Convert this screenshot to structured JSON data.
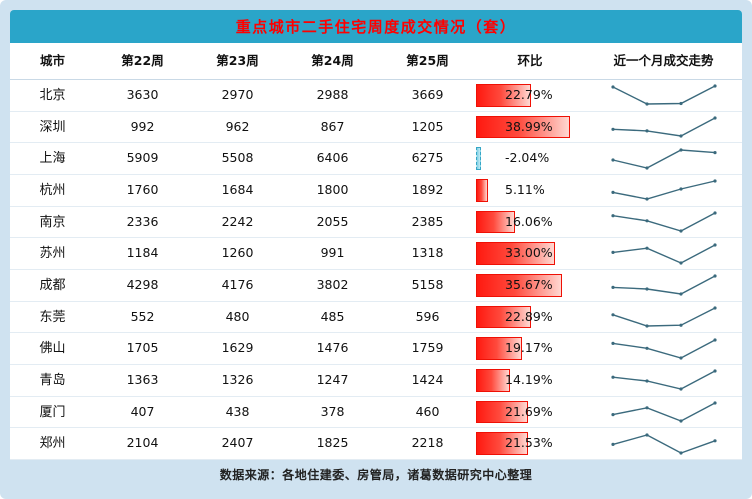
{
  "title": "重点城市二手住宅周度成交情况（套）",
  "footer": "数据来源：各地住建委、房管局，诸葛数据研究中心整理",
  "columns": [
    "城市",
    "第22周",
    "第23周",
    "第24周",
    "第25周",
    "环比",
    "近一个月成交走势"
  ],
  "colors": {
    "outer_bg": "#cfe2f0",
    "title_bg": "#2aa5c9",
    "title_text": "#ff0000",
    "bar_positive": "#ff1910",
    "bar_negative": "#7ecfe4",
    "sparkline": "#3b6a7d"
  },
  "chart_data": {
    "type": "table",
    "title": "重点城市二手住宅周度成交情况（套）",
    "columns": [
      "城市",
      "第22周",
      "第23周",
      "第24周",
      "第25周",
      "环比",
      "近一个月成交走势"
    ],
    "sparkline_note": "近一个月成交走势 column shows a line sparkline of the four weekly values per row",
    "rows": [
      {
        "city": "北京",
        "values": [
          3630,
          2970,
          2988,
          3669
        ],
        "pct": "22.79%",
        "pct_value": 22.79
      },
      {
        "city": "深圳",
        "values": [
          992,
          962,
          867,
          1205
        ],
        "pct": "38.99%",
        "pct_value": 38.99
      },
      {
        "city": "上海",
        "values": [
          5909,
          5508,
          6406,
          6275
        ],
        "pct": "-2.04%",
        "pct_value": -2.04
      },
      {
        "city": "杭州",
        "values": [
          1760,
          1684,
          1800,
          1892
        ],
        "pct": "5.11%",
        "pct_value": 5.11
      },
      {
        "city": "南京",
        "values": [
          2336,
          2242,
          2055,
          2385
        ],
        "pct": "16.06%",
        "pct_value": 16.06
      },
      {
        "city": "苏州",
        "values": [
          1184,
          1260,
          991,
          1318
        ],
        "pct": "33.00%",
        "pct_value": 33.0
      },
      {
        "city": "成都",
        "values": [
          4298,
          4176,
          3802,
          5158
        ],
        "pct": "35.67%",
        "pct_value": 35.67
      },
      {
        "city": "东莞",
        "values": [
          552,
          480,
          485,
          596
        ],
        "pct": "22.89%",
        "pct_value": 22.89
      },
      {
        "city": "佛山",
        "values": [
          1705,
          1629,
          1476,
          1759
        ],
        "pct": "19.17%",
        "pct_value": 19.17
      },
      {
        "city": "青岛",
        "values": [
          1363,
          1326,
          1247,
          1424
        ],
        "pct": "14.19%",
        "pct_value": 14.19
      },
      {
        "city": "厦门",
        "values": [
          407,
          438,
          378,
          460
        ],
        "pct": "21.69%",
        "pct_value": 21.69
      },
      {
        "city": "郑州",
        "values": [
          2104,
          2407,
          1825,
          2218
        ],
        "pct": "21.53%",
        "pct_value": 21.53
      }
    ]
  }
}
